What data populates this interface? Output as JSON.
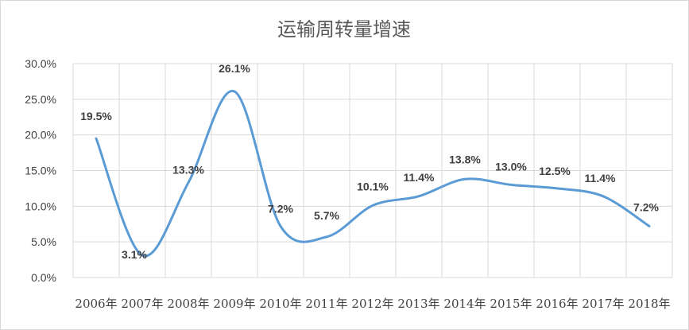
{
  "chart_data": {
    "type": "line",
    "title": "运输周转量增速",
    "categories": [
      "2006年",
      "2007年",
      "2008年",
      "2009年",
      "2010年",
      "2011年",
      "2012年",
      "2013年",
      "2014年",
      "2015年",
      "2016年",
      "2017年",
      "2018年"
    ],
    "series": [
      {
        "values": [
          19.5,
          3.1,
          13.3,
          26.1,
          7.2,
          5.7,
          10.1,
          11.4,
          13.8,
          13.0,
          12.5,
          11.4,
          7.2
        ],
        "data_labels": [
          "19.5%",
          "3.1%",
          "13.3%",
          "26.1%",
          "7.2%",
          "5.7%",
          "10.1%",
          "11.4%",
          "13.8%",
          "13.0%",
          "12.5%",
          "11.4%",
          "7.2%"
        ],
        "color": "#5b9bd5"
      }
    ],
    "ylim": [
      0,
      30
    ],
    "yticks": [
      "0.0%",
      "5.0%",
      "10.0%",
      "15.0%",
      "20.0%",
      "25.0%",
      "30.0%"
    ],
    "smooth": true,
    "grid": true,
    "legend": "none"
  }
}
